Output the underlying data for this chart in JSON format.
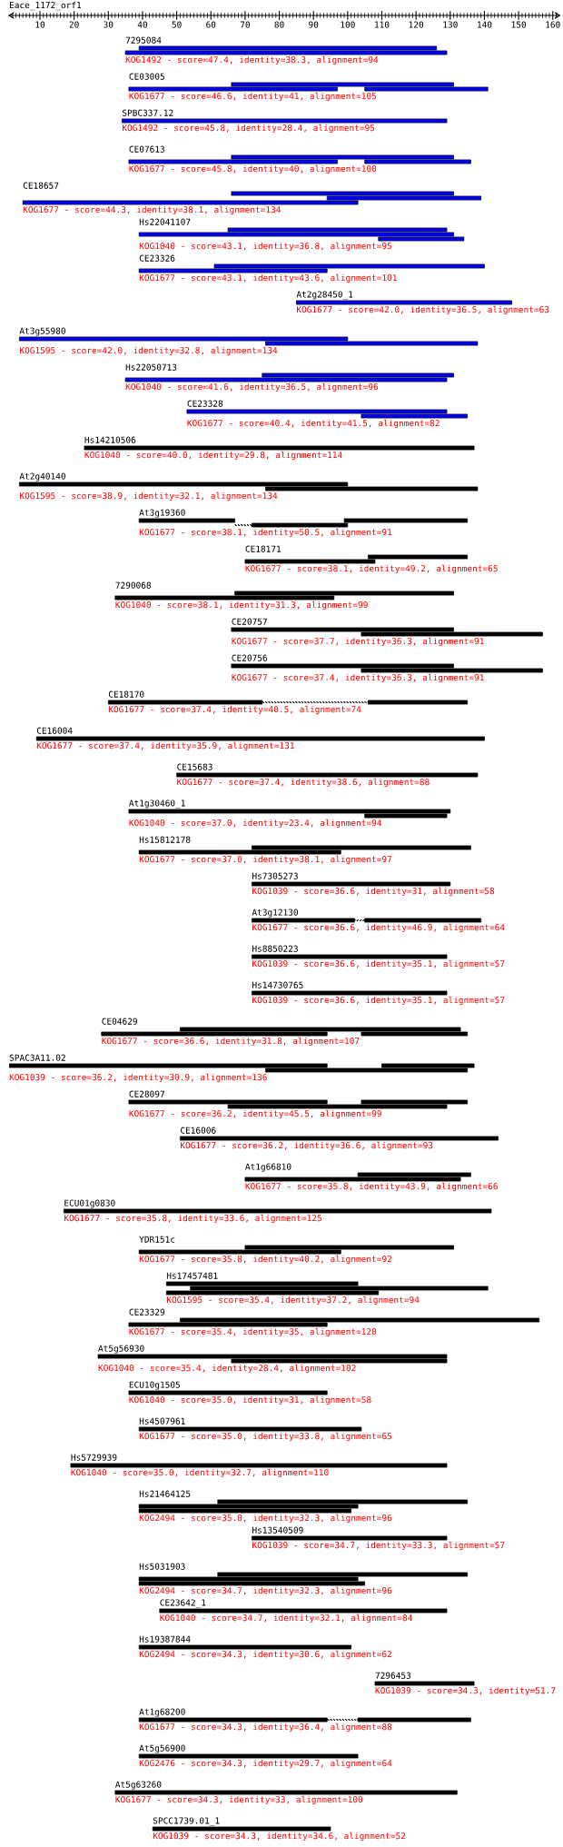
{
  "chart_data": {
    "type": "bar",
    "orientation": "horizontal",
    "title": "Eace_1172_orf1",
    "tick_labels": "x",
    "xlim": [
      1,
      162
    ],
    "xticks": [
      {
        "value": 2,
        "label": null
      },
      {
        "value": 3,
        "label": null
      },
      {
        "value": 4,
        "label": null
      },
      {
        "value": 5,
        "label": null
      },
      {
        "value": 6,
        "label": null
      },
      {
        "value": 7,
        "label": null
      },
      {
        "value": 8,
        "label": null
      },
      {
        "value": 9,
        "label": null
      },
      10,
      {
        "value": 11,
        "label": null
      },
      {
        "value": 12,
        "label": null
      },
      {
        "value": 13,
        "label": null
      },
      {
        "value": 14,
        "label": null
      },
      {
        "value": 15,
        "label": null
      },
      {
        "value": 16,
        "label": null
      },
      {
        "value": 17,
        "label": null
      },
      {
        "value": 18,
        "label": null
      },
      {
        "value": 19,
        "label": null
      },
      20,
      {
        "value": 21,
        "label": null
      },
      {
        "value": 22,
        "label": null
      },
      {
        "value": 23,
        "label": null
      },
      {
        "value": 24,
        "label": null
      },
      {
        "value": 25,
        "label": null
      },
      {
        "value": 26,
        "label": null
      },
      {
        "value": 27,
        "label": null
      },
      {
        "value": 28,
        "label": null
      },
      {
        "value": 29,
        "label": null
      },
      30,
      {
        "value": 31,
        "label": null
      },
      {
        "value": 32,
        "label": null
      },
      {
        "value": 33,
        "label": null
      },
      {
        "value": 34,
        "label": null
      },
      {
        "value": 35,
        "label": null
      },
      {
        "value": 36,
        "label": null
      },
      {
        "value": 37,
        "label": null
      },
      {
        "value": 38,
        "label": null
      },
      {
        "value": 39,
        "label": null
      },
      40,
      {
        "value": 41,
        "label": null
      },
      {
        "value": 42,
        "label": null
      },
      {
        "value": 43,
        "label": null
      },
      {
        "value": 44,
        "label": null
      },
      {
        "value": 45,
        "label": null
      },
      {
        "value": 46,
        "label": null
      },
      {
        "value": 47,
        "label": null
      },
      {
        "value": 48,
        "label": null
      },
      {
        "value": 49,
        "label": null
      },
      50,
      {
        "value": 51,
        "label": null
      },
      {
        "value": 52,
        "label": null
      },
      {
        "value": 53,
        "label": null
      },
      {
        "value": 54,
        "label": null
      },
      {
        "value": 55,
        "label": null
      },
      {
        "value": 56,
        "label": null
      },
      {
        "value": 57,
        "label": null
      },
      {
        "value": 58,
        "label": null
      },
      {
        "value": 59,
        "label": null
      },
      60,
      {
        "value": 61,
        "label": null
      },
      {
        "value": 62,
        "label": null
      },
      {
        "value": 63,
        "label": null
      },
      {
        "value": 64,
        "label": null
      },
      {
        "value": 65,
        "label": null
      },
      {
        "value": 66,
        "label": null
      },
      {
        "value": 67,
        "label": null
      },
      {
        "value": 68,
        "label": null
      },
      {
        "value": 69,
        "label": null
      },
      70,
      {
        "value": 71,
        "label": null
      },
      {
        "value": 72,
        "label": null
      },
      {
        "value": 73,
        "label": null
      },
      {
        "value": 74,
        "label": null
      },
      {
        "value": 75,
        "label": null
      },
      {
        "value": 76,
        "label": null
      },
      {
        "value": 77,
        "label": null
      },
      {
        "value": 78,
        "label": null
      },
      {
        "value": 79,
        "label": null
      },
      80,
      {
        "value": 81,
        "label": null
      },
      {
        "value": 82,
        "label": null
      },
      {
        "value": 83,
        "label": null
      },
      {
        "value": 84,
        "label": null
      },
      {
        "value": 85,
        "label": null
      },
      {
        "value": 86,
        "label": null
      },
      {
        "value": 87,
        "label": null
      },
      {
        "value": 88,
        "label": null
      },
      {
        "value": 89,
        "label": null
      },
      90,
      {
        "value": 91,
        "label": null
      },
      {
        "value": 92,
        "label": null
      },
      {
        "value": 93,
        "label": null
      },
      {
        "value": 94,
        "label": null
      },
      {
        "value": 95,
        "label": null
      },
      {
        "value": 96,
        "label": null
      },
      {
        "value": 97,
        "label": null
      },
      {
        "value": 98,
        "label": null
      },
      {
        "value": 99,
        "label": null
      },
      100,
      {
        "value": 101,
        "label": null
      },
      {
        "value": 102,
        "label": null
      },
      {
        "value": 103,
        "label": null
      },
      {
        "value": 104,
        "label": null
      },
      {
        "value": 105,
        "label": null
      },
      {
        "value": 106,
        "label": null
      },
      {
        "value": 107,
        "label": null
      },
      {
        "value": 108,
        "label": null
      },
      {
        "value": 109,
        "label": null
      },
      110,
      {
        "value": 111,
        "label": null
      },
      {
        "value": 112,
        "label": null
      },
      {
        "value": 113,
        "label": null
      },
      {
        "value": 114,
        "label": null
      },
      {
        "value": 115,
        "label": null
      },
      {
        "value": 116,
        "label": null
      },
      {
        "value": 117,
        "label": null
      },
      {
        "value": 118,
        "label": null
      },
      {
        "value": 119,
        "label": null
      },
      120,
      {
        "value": 121,
        "label": null
      },
      {
        "value": 122,
        "label": null
      },
      {
        "value": 123,
        "label": null
      },
      {
        "value": 124,
        "label": null
      },
      {
        "value": 125,
        "label": null
      },
      {
        "value": 126,
        "label": null
      },
      {
        "value": 127,
        "label": null
      },
      {
        "value": 128,
        "label": null
      },
      {
        "value": 129,
        "label": null
      },
      130,
      {
        "value": 131,
        "label": null
      },
      {
        "value": 132,
        "label": null
      },
      {
        "value": 133,
        "label": null
      },
      {
        "value": 134,
        "label": null
      },
      {
        "value": 135,
        "label": null
      },
      {
        "value": 136,
        "label": null
      },
      {
        "value": 137,
        "label": null
      },
      {
        "value": 138,
        "label": null
      },
      {
        "value": 139,
        "label": null
      },
      140,
      {
        "value": 141,
        "label": null
      },
      {
        "value": 142,
        "label": null
      },
      {
        "value": 143,
        "label": null
      },
      {
        "value": 144,
        "label": null
      },
      {
        "value": 145,
        "label": null
      },
      {
        "value": 146,
        "label": null
      },
      {
        "value": 147,
        "label": null
      },
      {
        "value": 148,
        "label": null
      },
      {
        "value": 149,
        "label": null
      },
      150,
      {
        "value": 151,
        "label": null
      },
      {
        "value": 152,
        "label": null
      },
      {
        "value": 153,
        "label": null
      },
      {
        "value": 154,
        "label": null
      },
      {
        "value": 155,
        "label": null
      },
      {
        "value": 156,
        "label": null
      },
      {
        "value": 157,
        "label": null
      },
      {
        "value": 158,
        "label": null
      },
      {
        "value": 159,
        "label": null
      },
      160,
      {
        "value": 161,
        "label": null
      }
    ],
    "categories": [
      "7295084",
      "CE03005",
      "SPBC337.12",
      "CE07613",
      "CE18657",
      "Hs22041107",
      "CE23326",
      "At2g28450_1",
      "At3g55980",
      "Hs22050713",
      "CE23328",
      "Hs14210506",
      "At2g40140",
      "At3g19360",
      "CE18171",
      "7290068",
      "CE20757",
      "CE20756",
      "CE18170",
      "CE16004",
      "CE15683",
      "At1g30460_1",
      "Hs15812178",
      "Hs7305273",
      "At3g12130",
      "Hs8850223",
      "Hs14730765",
      "CE04629",
      "SPAC3A11.02",
      "CE28097",
      "CE16006",
      "At1g66810",
      "ECU01g0830",
      "YDR151c",
      "Hs17457481",
      "CE23329",
      "At5g56930",
      "ECU10g1505",
      "Hs4507961",
      "Hs5729939",
      "Hs21464125",
      "Hs13540509",
      "Hs5031903",
      "CE23642_1",
      "Hs19387844",
      "7296453",
      "At1g68200",
      "At5g56900",
      "At5g63260",
      "SPCC1739.01_1"
    ],
    "series": [
      {
        "base": [
          39,
          66,
          34,
          66,
          66,
          65,
          61,
          85,
          4,
          75,
          53,
          23,
          4,
          39,
          106,
          67,
          66,
          66,
          30,
          9,
          50,
          36,
          72,
          72,
          72,
          72,
          72,
          51,
          1,
          36,
          51,
          103,
          17,
          70,
          47,
          51,
          27,
          36,
          39,
          19,
          62,
          72,
          62,
          45,
          39,
          108,
          39,
          39,
          32,
          43
        ],
        "values": [
          87,
          65,
          95,
          65,
          65,
          64,
          79,
          63,
          96,
          56,
          76,
          114,
          96,
          28,
          29,
          64,
          65,
          65,
          45,
          131,
          88,
          94,
          64,
          58,
          30,
          57,
          57,
          82,
          93,
          58,
          93,
          33,
          125,
          61,
          56,
          105,
          102,
          58,
          65,
          110,
          73,
          57,
          73,
          84,
          62,
          29,
          55,
          64,
          100,
          52
        ],
        "colors": [
          "#0000ff",
          "#0000ff",
          "#0000ff",
          "#0000ff",
          "#0000ff",
          "#0000ff",
          "#0000ff",
          "#0000ff",
          "#0000ff",
          "#0000ff",
          "#0000ff",
          "#000000",
          "#000000",
          "#000000",
          "#000000",
          "#000000",
          "#000000",
          "#000000",
          "#000000",
          "#000000",
          "#000000",
          "#000000",
          "#000000",
          "#000000",
          "#000000",
          "#000000",
          "#000000",
          "#000000",
          "#000000",
          "#000000",
          "#000000",
          "#000000",
          "#000000",
          "#000000",
          "#000000",
          "#000000",
          "#000000",
          "#000000",
          "#000000",
          "#000000",
          "#000000",
          "#000000",
          "#000000",
          "#000000",
          "#000000",
          "#000000",
          "#000000",
          "#000000",
          "#000000",
          "#000000"
        ]
      },
      {
        "base": [
          35,
          36,
          null,
          36,
          94,
          39,
          39,
          null,
          76,
          35,
          104,
          null,
          76,
          99,
          70,
          32,
          104,
          104,
          106,
          null,
          null,
          105,
          39,
          null,
          105,
          null,
          null,
          28,
          110,
          104,
          null,
          70,
          null,
          39,
          54,
          36,
          66,
          null,
          null,
          null,
          39,
          null,
          39,
          null,
          null,
          null,
          103,
          null,
          null,
          null
        ],
        "values": [
          94,
          61,
          null,
          61,
          45,
          92,
          55,
          null,
          62,
          94,
          31,
          null,
          62,
          36,
          38,
          64,
          53,
          53,
          29,
          null,
          null,
          24,
          59,
          null,
          34,
          null,
          null,
          66,
          27,
          31,
          null,
          63,
          null,
          59,
          87,
          58,
          63,
          null,
          null,
          null,
          64,
          null,
          64,
          null,
          null,
          null,
          33,
          null,
          null,
          null
        ],
        "colors": [
          "#0000ff",
          "#0000ff",
          null,
          "#0000ff",
          "#0000ff",
          "#0000ff",
          "#0000ff",
          null,
          "#0000ff",
          "#0000ff",
          "#0000ff",
          null,
          "#000000",
          "#000000",
          "#000000",
          "#000000",
          "#000000",
          "#000000",
          "#000000",
          null,
          null,
          "#000000",
          "#000000",
          null,
          "#000000",
          null,
          null,
          "#000000",
          "#000000",
          "#000000",
          null,
          "#000000",
          null,
          "#000000",
          "#000000",
          "#000000",
          "#000000",
          null,
          null,
          null,
          "#000000",
          null,
          "#000000",
          null,
          null,
          null,
          "#000000",
          null,
          null,
          null
        ]
      },
      {
        "base": [
          null,
          105,
          null,
          105,
          5,
          109,
          null,
          null,
          null,
          null,
          null,
          null,
          null,
          72,
          null,
          null,
          null,
          null,
          null,
          null,
          null,
          null,
          null,
          null,
          null,
          null,
          null,
          104,
          76,
          65,
          null,
          null,
          null,
          null,
          47,
          null,
          null,
          null,
          null,
          null,
          39,
          null,
          39,
          null,
          null,
          null,
          null,
          null,
          null,
          null
        ],
        "values": [
          null,
          36,
          null,
          31,
          98,
          25,
          null,
          null,
          null,
          null,
          null,
          null,
          null,
          28,
          null,
          null,
          null,
          null,
          null,
          null,
          null,
          null,
          null,
          null,
          null,
          null,
          null,
          31,
          59,
          64,
          null,
          null,
          null,
          null,
          62,
          null,
          null,
          null,
          null,
          null,
          62,
          null,
          66,
          null,
          null,
          null,
          null,
          null,
          null,
          null
        ],
        "colors": [
          null,
          "#0000ff",
          null,
          "#0000ff",
          "#0000ff",
          "#0000ff",
          null,
          null,
          null,
          null,
          null,
          null,
          null,
          "#000000",
          null,
          null,
          null,
          null,
          null,
          null,
          null,
          null,
          null,
          null,
          null,
          null,
          null,
          "#000000",
          "#000000",
          "#000000",
          null,
          null,
          null,
          null,
          "#000000",
          null,
          null,
          null,
          null,
          null,
          "#000000",
          null,
          "#000000",
          null,
          null,
          null,
          null,
          null,
          null,
          null
        ]
      },
      {
        "line_style": "dotted",
        "color": "#000000",
        "base": [
          null,
          null,
          null,
          null,
          null,
          null,
          null,
          null,
          null,
          null,
          null,
          null,
          null,
          67,
          null,
          null,
          null,
          null,
          75,
          null,
          null,
          null,
          null,
          null,
          102,
          null,
          null,
          null,
          null,
          null,
          null,
          null,
          null,
          null,
          null,
          null,
          null,
          null,
          null,
          null,
          null,
          null,
          null,
          null,
          null,
          null,
          94,
          null,
          null,
          null
        ],
        "values": [
          null,
          null,
          null,
          null,
          null,
          null,
          null,
          null,
          null,
          null,
          null,
          null,
          null,
          5,
          null,
          null,
          null,
          null,
          31,
          null,
          null,
          null,
          null,
          null,
          3,
          null,
          null,
          null,
          null,
          null,
          null,
          null,
          null,
          null,
          null,
          null,
          null,
          null,
          null,
          null,
          null,
          null,
          null,
          null,
          null,
          null,
          9,
          null,
          null,
          null
        ]
      }
    ],
    "annotations": [
      "KOG1492 - score=47.4, identity=38.3, alignment=94",
      "KOG1677 - score=46.6, identity=41, alignment=105",
      "KOG1492 - score=45.8, identity=28.4, alignment=95",
      "KOG1677 - score=45.8, identity=40, alignment=100",
      "KOG1677 - score=44.3, identity=38.1, alignment=134",
      "KOG1040 - score=43.1, identity=36.8, alignment=95",
      "KOG1677 - score=43.1, identity=43.6, alignment=101",
      "KOG1677 - score=42.0, identity=36.5, alignment=63",
      "KOG1595 - score=42.0, identity=32.8, alignment=134",
      "KOG1040 - score=41.6, identity=36.5, alignment=96",
      "KOG1677 - score=40.4, identity=41.5, alignment=82",
      "KOG1040 - score=40.0, identity=29.8, alignment=114",
      "KOG1595 - score=38.9, identity=32.1, alignment=134",
      "KOG1677 - score=38.1, identity=50.5, alignment=91",
      "KOG1677 - score=38.1, identity=49.2, alignment=65",
      "KOG1040 - score=38.1, identity=31.3, alignment=99",
      "KOG1677 - score=37.7, identity=36.3, alignment=91",
      "KOG1677 - score=37.4, identity=36.3, alignment=91",
      "KOG1677 - score=37.4, identity=40.5, alignment=74",
      "KOG1677 - score=37.4, identity=35.9, alignment=131",
      "KOG1677 - score=37.4, identity=38.6, alignment=88",
      "KOG1040 - score=37.0, identity=23.4, alignment=94",
      "KOG1677 - score=37.0, identity=38.1, alignment=97",
      "KOG1039 - score=36.6, identity=31, alignment=58",
      "KOG1677 - score=36.6, identity=46.9, alignment=64",
      "KOG1039 - score=36.6, identity=35.1, alignment=57",
      "KOG1039 - score=36.6, identity=35.1, alignment=57",
      "KOG1677 - score=36.6, identity=31.8, alignment=107",
      "KOG1039 - score=36.2, identity=30.9, alignment=136",
      "KOG1677 - score=36.2, identity=45.5, alignment=99",
      "KOG1677 - score=36.2, identity=36.6, alignment=93",
      "KOG1677 - score=35.8, identity=43.9, alignment=66",
      "KOG1677 - score=35.8, identity=33.6, alignment=125",
      "KOG1677 - score=35.8, identity=40.2, alignment=92",
      "KOG1595 - score=35.4, identity=37.2, alignment=94",
      "KOG1677 - score=35.4, identity=35, alignment=120",
      "KOG1040 - score=35.4, identity=28.4, alignment=102",
      "KOG1040 - score=35.0, identity=31, alignment=58",
      "KOG1677 - score=35.0, identity=33.8, alignment=65",
      "KOG1040 - score=35.0, identity=32.7, alignment=110",
      "KOG2494 - score=35.0, identity=32.3, alignment=96",
      "KOG1039 - score=34.7, identity=33.3, alignment=57",
      "KOG2494 - score=34.7, identity=32.3, alignment=96",
      "KOG1040 - score=34.7, identity=32.1, alignment=84",
      "KOG2494 - score=34.3, identity=30.6, alignment=62",
      "KOG1039 - score=34.3, identity=51.7",
      "KOG1677 - score=34.3, identity=36.4, alignment=88",
      "KOG2476 - score=34.3, identity=29.7, alignment=64",
      "KOG1677 - score=34.3, identity=33, alignment=100",
      "KOG1039 - score=34.3, identity=34.6, alignment=52"
    ]
  }
}
